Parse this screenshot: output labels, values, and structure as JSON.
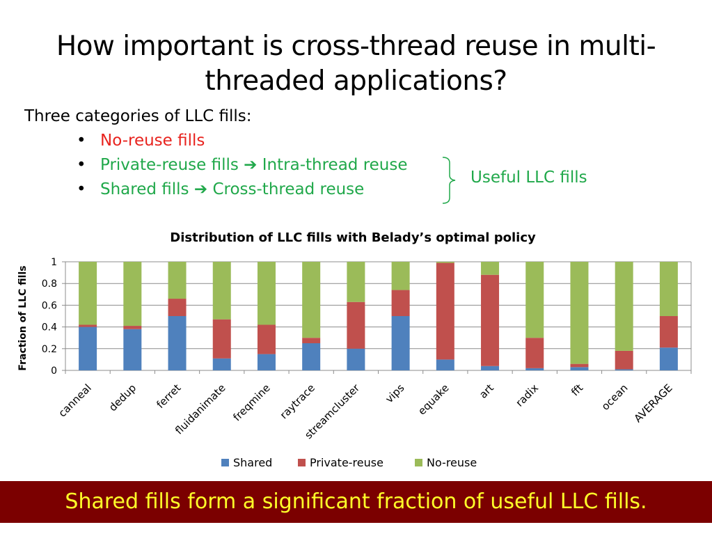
{
  "slide": {
    "title_line1": "How important is cross-thread reuse in multi-",
    "title_line2": "threaded applications?",
    "intro": "Three categories of LLC fills:",
    "bullets": [
      {
        "text": "No-reuse fills",
        "color": "#e8231e"
      },
      {
        "part1": "Private-reuse fills",
        "arrow": "➔",
        "part2": "Intra-thread reuse",
        "color": "#20a84a"
      },
      {
        "part1": "Shared fills",
        "arrow": "➔",
        "part2": "Cross-thread reuse",
        "color": "#20a84a"
      }
    ],
    "bullet_glyph": "•",
    "brace_label": "Useful LLC fills",
    "footer": "Shared fills form a significant fraction of useful LLC fills.",
    "colors": {
      "footer_bg": "#7b0000",
      "footer_text": "#ffff29",
      "red": "#e8231e",
      "green": "#20a84a"
    }
  },
  "chart_data": {
    "type": "bar",
    "stacked": true,
    "title": "Distribution of LLC fills with Belady’s optimal policy",
    "ylabel": "Fraction of LLC fills",
    "xlabel": "",
    "ylim": [
      0,
      1
    ],
    "yticks": [
      "0",
      "0.2",
      "0.4",
      "0.6",
      "0.8",
      "1"
    ],
    "grid": true,
    "legend_position": "bottom",
    "categories": [
      "canneal",
      "dedup",
      "ferret",
      "fluidanimate",
      "freqmine",
      "raytrace",
      "streamcluster",
      "vips",
      "equake",
      "art",
      "radix",
      "fft",
      "ocean",
      "AVERAGE"
    ],
    "series": [
      {
        "name": "Shared",
        "color": "#4f81bd",
        "values": [
          0.4,
          0.38,
          0.5,
          0.11,
          0.15,
          0.25,
          0.2,
          0.5,
          0.1,
          0.04,
          0.02,
          0.03,
          0.01,
          0.21
        ]
      },
      {
        "name": "Private-reuse",
        "color": "#c0504d",
        "values": [
          0.02,
          0.03,
          0.16,
          0.36,
          0.27,
          0.05,
          0.43,
          0.24,
          0.89,
          0.84,
          0.28,
          0.03,
          0.17,
          0.29
        ]
      },
      {
        "name": "No-reuse",
        "color": "#9bbb59",
        "values": [
          0.58,
          0.59,
          0.34,
          0.53,
          0.58,
          0.7,
          0.37,
          0.26,
          0.01,
          0.12,
          0.7,
          0.94,
          0.82,
          0.5
        ]
      }
    ]
  }
}
